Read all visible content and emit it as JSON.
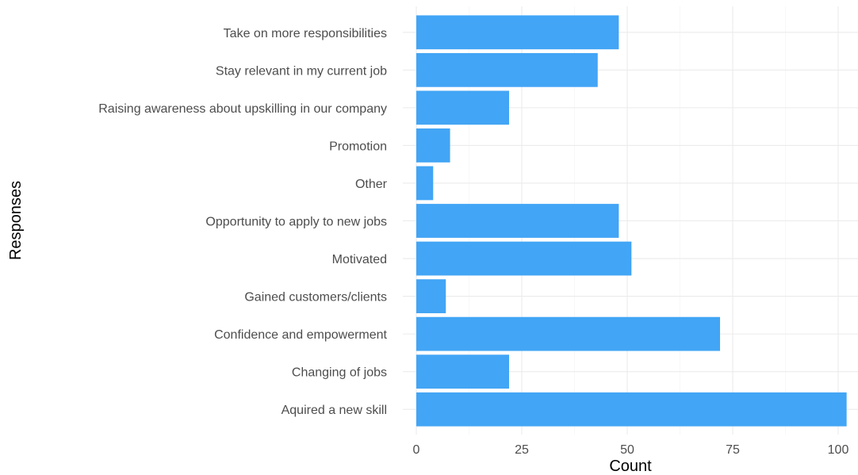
{
  "chart_data": {
    "type": "bar",
    "orientation": "horizontal",
    "categories": [
      "Aquired a new skill",
      "Changing of jobs",
      "Confidence and empowerment",
      "Gained customers/clients",
      "Motivated",
      "Opportunity to apply to new jobs",
      "Other",
      "Promotion",
      "Raising awareness about upskilling in our company",
      "Stay relevant in my current job",
      "Take on more responsibilities"
    ],
    "values": [
      102,
      22,
      72,
      7,
      51,
      48,
      4,
      8,
      22,
      43,
      48
    ],
    "xlabel": "Count",
    "ylabel": "Responses",
    "xlim": [
      0,
      105
    ],
    "xticks": [
      0,
      25,
      50,
      75,
      100
    ],
    "grid": true,
    "legend": "none",
    "bar_color": "#42a5f5"
  }
}
